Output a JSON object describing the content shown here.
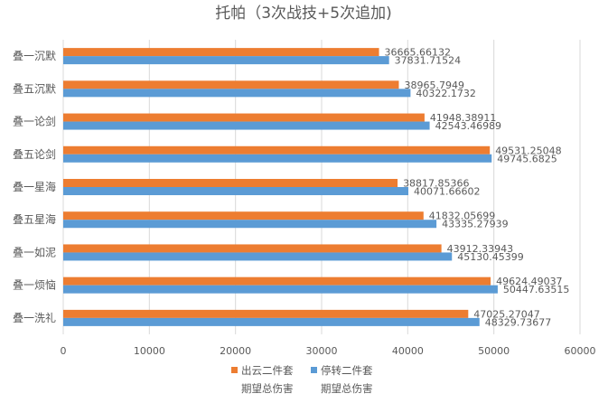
{
  "chart_data": {
    "type": "bar",
    "orientation": "horizontal",
    "title": "托帕（3次战技+5次追加)",
    "categories": [
      "叠一沉默",
      "叠五沉默",
      "叠一论剑",
      "叠五论剑",
      "叠一星海",
      "叠五星海",
      "叠一如泥",
      "叠一烦恼",
      "叠一洗礼"
    ],
    "series": [
      {
        "name": "出云二件套期望总伤害",
        "legend_lines": [
          "出云二件套",
          "期望总伤害"
        ],
        "color": "#ed7d31",
        "values": [
          36665.66132,
          38965.7949,
          41948.38911,
          49531.25048,
          38817.85366,
          41832.05699,
          43912.33943,
          49624.49037,
          47025.27047
        ],
        "value_labels": [
          "36665.66132",
          "38965.7949",
          "41948.38911",
          "49531.25048",
          "38817.85366",
          "41832.05699",
          "43912.33943",
          "49624.49037",
          "47025.27047"
        ]
      },
      {
        "name": "停转二件套期望总伤害",
        "legend_lines": [
          "停转二件套",
          "期望总伤害"
        ],
        "color": "#5b9bd5",
        "values": [
          37831.71524,
          40322.1732,
          42543.46989,
          49745.6825,
          40071.66602,
          43335.27939,
          45130.45399,
          50447.63515,
          48329.73677
        ],
        "value_labels": [
          "37831.71524",
          "40322.1732",
          "42543.46989",
          "49745.6825",
          "40071.66602",
          "43335.27939",
          "45130.45399",
          "50447.63515",
          "48329.73677"
        ]
      }
    ],
    "xlim": [
      0,
      60000
    ],
    "xticks": [
      0,
      10000,
      20000,
      30000,
      40000,
      50000,
      60000
    ],
    "xtick_labels": [
      "0",
      "10000",
      "20000",
      "30000",
      "40000",
      "50000",
      "60000"
    ],
    "grid": true,
    "legend_position": "bottom",
    "axis_color": "#d9d9d9",
    "text_color": "#595959"
  }
}
